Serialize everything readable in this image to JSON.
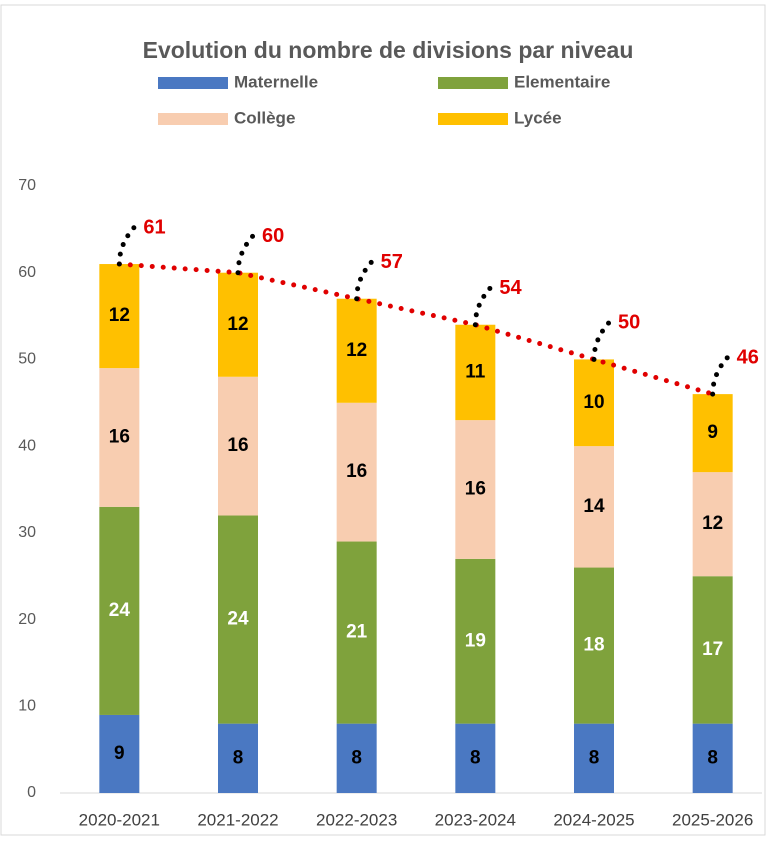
{
  "chart_data": {
    "type": "stacked_bar",
    "title": "Evolution du nombre de divisions par niveau",
    "categories": [
      "2020-2021",
      "2021-2022",
      "2022-2023",
      "2023-2024",
      "2024-2025",
      "2025-2026"
    ],
    "series": [
      {
        "name": "Maternelle",
        "color": "#4a78c2",
        "label_color": "#000000",
        "values": [
          9,
          8,
          8,
          8,
          8,
          8
        ]
      },
      {
        "name": "Elementaire",
        "color": "#7fa23c",
        "label_color": "#ffffff",
        "values": [
          24,
          24,
          21,
          19,
          18,
          17
        ]
      },
      {
        "name": "Collège",
        "color": "#f8cdb0",
        "label_color": "#000000",
        "values": [
          16,
          16,
          16,
          16,
          14,
          12
        ]
      },
      {
        "name": "Lycée",
        "color": "#ffc000",
        "label_color": "#000000",
        "values": [
          12,
          12,
          12,
          11,
          10,
          9
        ]
      }
    ],
    "totals": {
      "color": "#e00000",
      "values": [
        61,
        60,
        57,
        54,
        50,
        46
      ]
    },
    "ylim": [
      0,
      70
    ],
    "yticks": [
      0,
      10,
      20,
      30,
      40,
      50,
      60,
      70
    ],
    "grid": false
  }
}
